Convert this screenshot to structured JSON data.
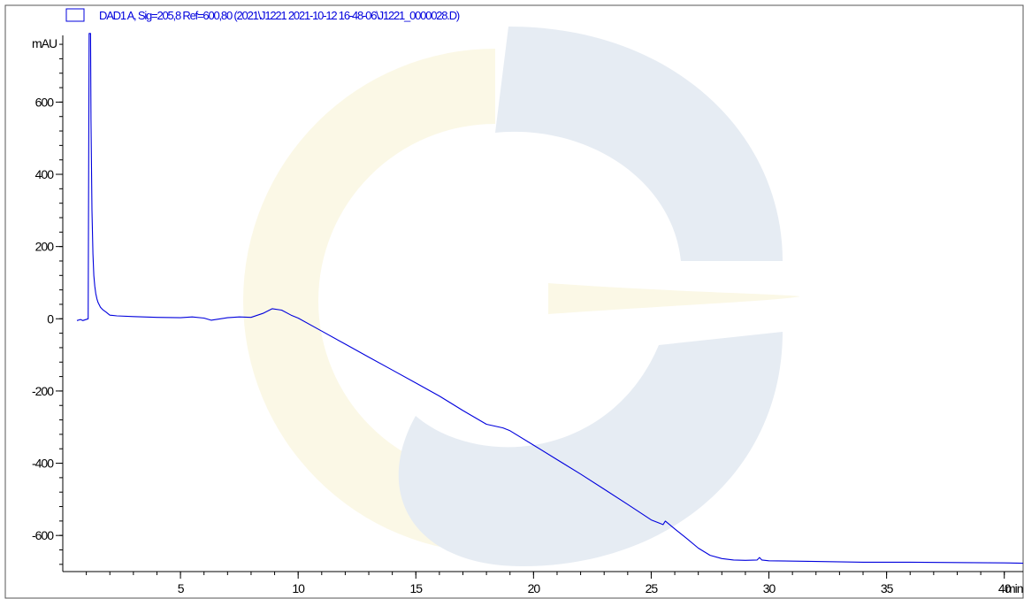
{
  "colors": {
    "trace": "#0000dd",
    "axis": "#000000",
    "frame": "#555555",
    "watermark_blue": "#e6ecf3",
    "watermark_yellow": "#fbf8e6"
  },
  "legend": {
    "label": "DAD1 A, Sig=205,8 Ref=600,80 (2021\\J1221 2021-10-12 16-48-06\\J1221_0000028.D)",
    "swatch_icon": "legend-swatch-icon"
  },
  "chart_data": {
    "type": "line",
    "title": "",
    "xlabel": "min",
    "ylabel": "mAU",
    "xlim": [
      0,
      40.8
    ],
    "ylim": [
      -700,
      770
    ],
    "x_ticks": [
      5,
      10,
      15,
      20,
      25,
      30,
      35,
      40
    ],
    "x_tick_labels": [
      "5",
      "10",
      "15",
      "20",
      "25",
      "30",
      "35",
      "40"
    ],
    "y_ticks": [
      600,
      400,
      200,
      0,
      -200,
      -400,
      -600
    ],
    "y_tick_labels": [
      "600",
      "400",
      "200",
      "0",
      "-200",
      "-400",
      "-600"
    ],
    "grid": false,
    "legend_position": "top-left",
    "series": [
      {
        "name": "DAD1 A, Sig=205,8 Ref=600,80 (2021\\J1221 2021-10-12 16-48-06\\J1221_0000028.D)",
        "x": [
          0.6,
          0.75,
          0.85,
          1.08,
          1.12,
          1.15,
          1.18,
          1.2,
          1.24,
          1.28,
          1.32,
          1.36,
          1.4,
          1.45,
          1.5,
          1.6,
          1.7,
          1.85,
          2.0,
          2.3,
          3.0,
          4.0,
          5.0,
          5.5,
          6.0,
          6.3,
          7.0,
          7.5,
          8.0,
          8.5,
          8.9,
          9.3,
          9.7,
          10.0,
          11.0,
          12.0,
          13.0,
          14.0,
          15.0,
          16.0,
          17.0,
          18.0,
          18.7,
          19.0,
          20.0,
          21.0,
          22.0,
          23.0,
          24.0,
          25.0,
          25.5,
          25.6,
          26.0,
          26.5,
          27.0,
          27.5,
          28.0,
          28.5,
          29.0,
          29.5,
          29.6,
          29.7,
          30.0,
          32.0,
          34.0,
          36.0,
          38.0,
          40.0,
          40.8
        ],
        "y": [
          -5,
          -2,
          -5,
          0,
          780,
          780,
          780,
          550,
          300,
          180,
          120,
          90,
          70,
          55,
          45,
          32,
          25,
          18,
          10,
          8,
          6,
          4,
          3,
          5,
          2,
          -4,
          3,
          5,
          4,
          15,
          28,
          24,
          10,
          2,
          -34,
          -70,
          -106,
          -142,
          -178,
          -214,
          -254,
          -292,
          -302,
          -310,
          -350,
          -390,
          -430,
          -472,
          -514,
          -557,
          -570,
          -560,
          -582,
          -608,
          -635,
          -655,
          -664,
          -668,
          -669,
          -668,
          -661,
          -668,
          -670,
          -672,
          -674,
          -674,
          -675,
          -676,
          -677
        ]
      }
    ]
  }
}
